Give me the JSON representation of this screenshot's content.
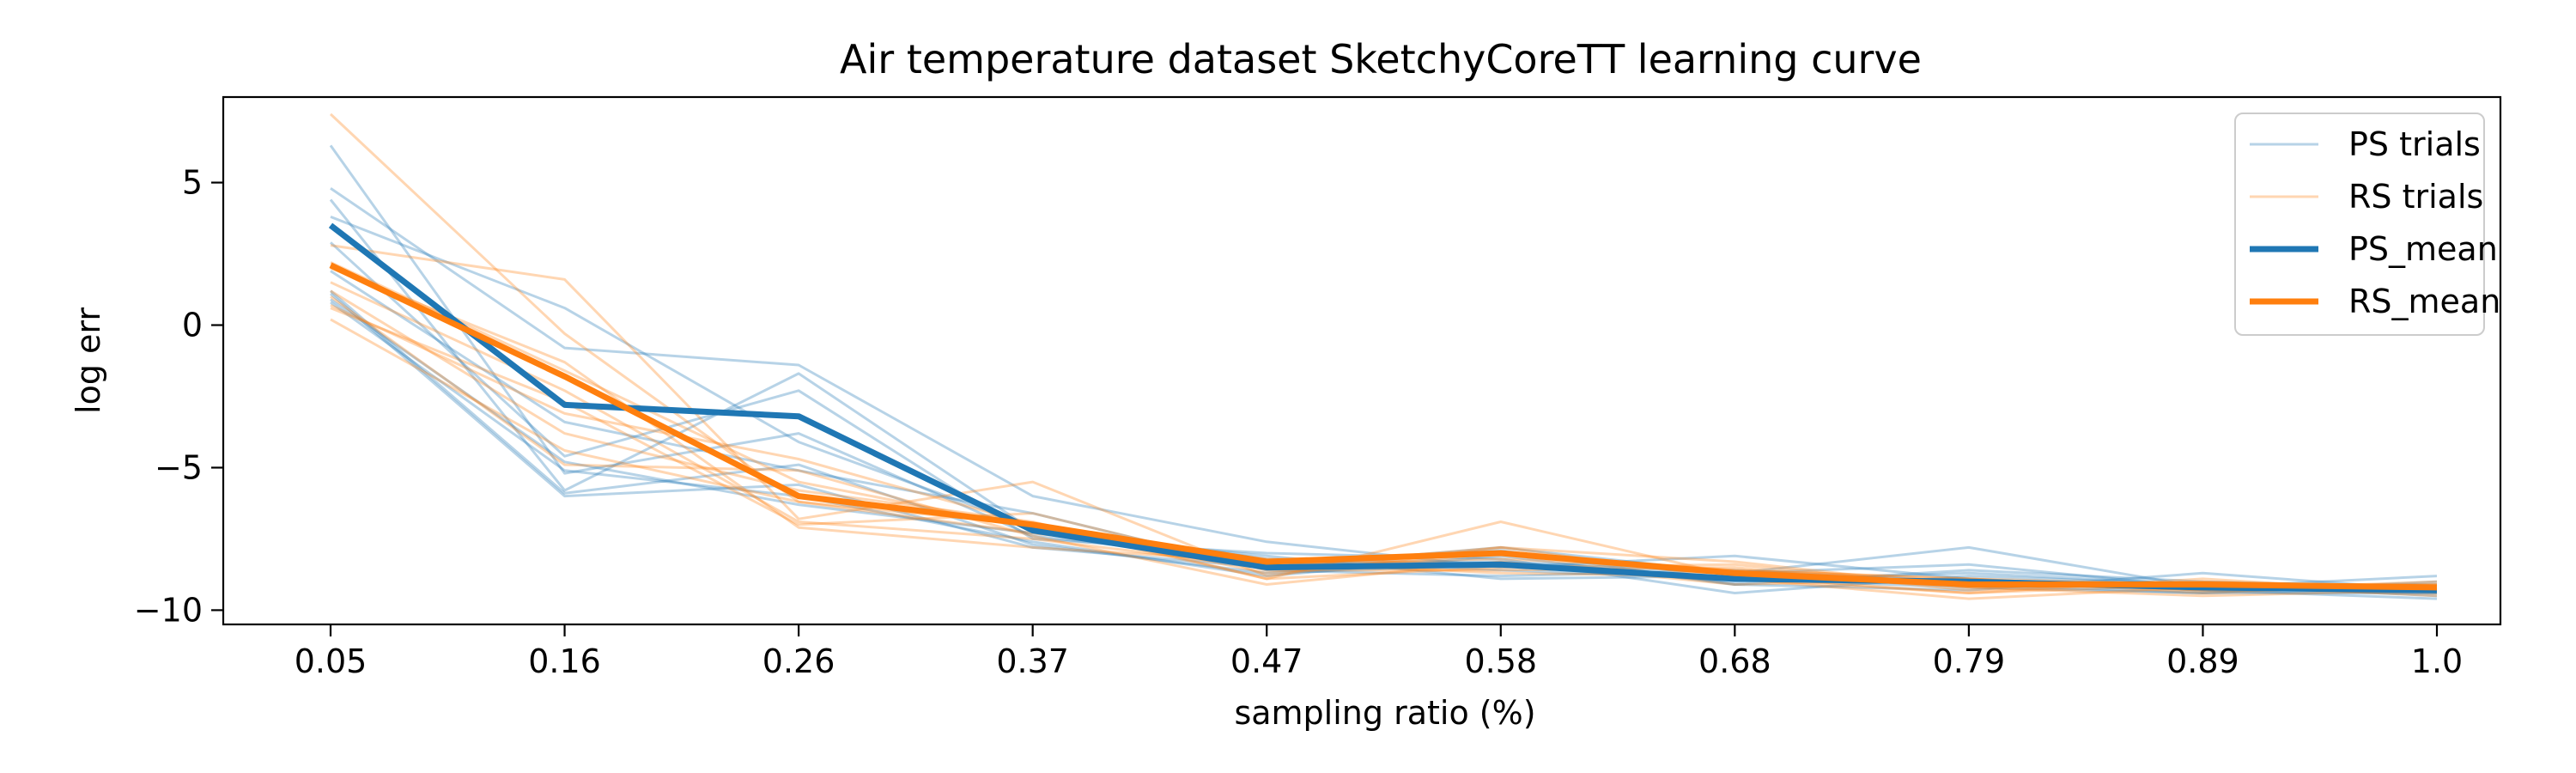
{
  "chart_data": {
    "type": "line",
    "title": "Air temperature dataset SketchyCoreTT learning curve",
    "xlabel": "sampling ratio (%)",
    "ylabel": "log err",
    "categories": [
      "0.05",
      "0.16",
      "0.26",
      "0.37",
      "0.47",
      "0.58",
      "0.68",
      "0.79",
      "0.89",
      "1.0"
    ],
    "ylim": [
      -10.5,
      8.0
    ],
    "yticks": [
      5,
      0,
      -5,
      -10
    ],
    "ytick_labels": [
      "5",
      "0",
      "−5",
      "−10"
    ],
    "grid": false,
    "legend_position": "top-right",
    "colors": {
      "ps_trials": "#1f77b4",
      "rs_trials": "#ff7f0e",
      "ps_mean": "#1f77b4",
      "rs_mean": "#ff7f0e",
      "axes": "#000000"
    },
    "legend": [
      {
        "label": "PS trials",
        "key": "ps_trials"
      },
      {
        "label": "RS trials",
        "key": "rs_trials"
      },
      {
        "label": "PS_mean",
        "key": "ps_mean"
      },
      {
        "label": "RS_mean",
        "key": "rs_mean"
      }
    ],
    "ps_trials": [
      [
        6.3,
        -5.2,
        -3.8,
        -7.4,
        -8.3,
        -8.3,
        -8.7,
        -7.8,
        -9.2,
        -8.8
      ],
      [
        4.8,
        -0.8,
        -1.4,
        -6.0,
        -7.6,
        -8.5,
        -8.1,
        -8.9,
        -9.3,
        -9.4
      ],
      [
        4.4,
        -5.8,
        -1.7,
        -7.2,
        -8.4,
        -7.9,
        -9.1,
        -8.6,
        -9.0,
        -9.2
      ],
      [
        3.8,
        0.6,
        -4.1,
        -7.1,
        -8.2,
        -8.6,
        -8.9,
        -9.2,
        -9.4,
        -9.0
      ],
      [
        2.9,
        -4.6,
        -2.3,
        -7.5,
        -8.0,
        -8.2,
        -9.4,
        -8.8,
        -9.1,
        -9.5
      ],
      [
        1.9,
        -3.4,
        -5.1,
        -6.6,
        -8.6,
        -8.8,
        -8.6,
        -9.0,
        -9.3,
        -9.6
      ],
      [
        1.1,
        -6.0,
        -5.6,
        -7.8,
        -8.5,
        -7.8,
        -8.7,
        -8.4,
        -9.2,
        -9.1
      ],
      [
        0.8,
        -5.1,
        -6.0,
        -7.6,
        -8.8,
        -8.1,
        -9.1,
        -9.3,
        -8.7,
        -9.3
      ],
      [
        0.9,
        -4.8,
        -6.3,
        -7.3,
        -8.1,
        -8.9,
        -8.8,
        -9.1,
        -9.4,
        -9.4
      ],
      [
        1.2,
        -5.9,
        -4.9,
        -7.7,
        -8.7,
        -8.4,
        -9.0,
        -8.7,
        -9.1,
        -9.2
      ]
    ],
    "rs_trials": [
      [
        7.4,
        -0.3,
        -6.2,
        -7.0,
        -8.9,
        -6.9,
        -8.8,
        -9.4,
        -9.1,
        -9.1
      ],
      [
        2.8,
        1.6,
        -6.8,
        -5.5,
        -8.8,
        -7.8,
        -8.3,
        -9.2,
        -9.0,
        -9.3
      ],
      [
        2.2,
        -1.6,
        -5.5,
        -7.1,
        -8.4,
        -8.2,
        -8.6,
        -8.9,
        -9.3,
        -9.0
      ],
      [
        1.5,
        -2.3,
        -6.9,
        -7.5,
        -8.5,
        -7.8,
        -8.9,
        -9.4,
        -8.9,
        -9.4
      ],
      [
        1.2,
        -3.8,
        -5.8,
        -6.9,
        -8.9,
        -8.5,
        -8.4,
        -9.2,
        -9.5,
        -9.3
      ],
      [
        0.2,
        -4.4,
        -6.2,
        -7.3,
        -8.2,
        -8.4,
        -8.9,
        -9.6,
        -9.2,
        -9.2
      ],
      [
        0.7,
        -3.1,
        -4.7,
        -7.0,
        -8.7,
        -8.0,
        -8.6,
        -8.9,
        -9.1,
        -9.5
      ],
      [
        2.0,
        -1.3,
        -7.1,
        -7.8,
        -8.3,
        -8.7,
        -8.8,
        -9.0,
        -9.3,
        -9.2
      ],
      [
        1.0,
        -4.9,
        -5.1,
        -7.4,
        -9.1,
        -8.3,
        -9.1,
        -8.9,
        -9.4,
        -9.1
      ],
      [
        0.6,
        -2.7,
        -7.0,
        -6.6,
        -8.6,
        -8.6,
        -8.5,
        -9.3,
        -9.0,
        -9.3
      ]
    ],
    "ps_mean": [
      3.5,
      -2.8,
      -3.2,
      -7.2,
      -8.5,
      -8.4,
      -8.9,
      -9.0,
      -9.2,
      -9.3
    ],
    "rs_mean": [
      2.1,
      -1.8,
      -6.0,
      -7.0,
      -8.3,
      -8.0,
      -8.7,
      -9.1,
      -9.1,
      -9.2
    ]
  }
}
